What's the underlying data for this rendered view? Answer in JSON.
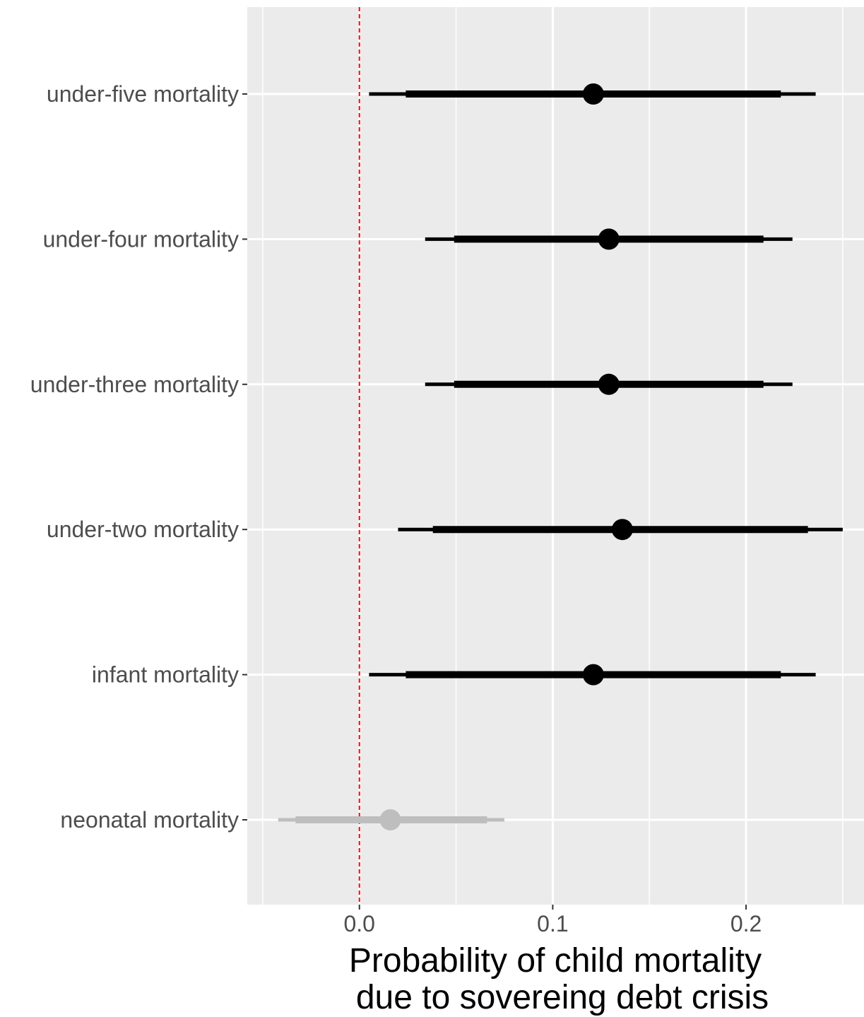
{
  "chart_data": {
    "type": "interval",
    "categories": [
      "under-five mortality",
      "under-four mortality",
      "under-three mortality",
      "under-two mortality",
      "infant mortality",
      "neonatal mortality"
    ],
    "series": [
      {
        "category": "under-five mortality",
        "point": 0.121,
        "inner": [
          0.024,
          0.218
        ],
        "outer": [
          0.005,
          0.236
        ],
        "color": "#000000"
      },
      {
        "category": "under-four mortality",
        "point": 0.129,
        "inner": [
          0.049,
          0.209
        ],
        "outer": [
          0.034,
          0.224
        ],
        "color": "#000000"
      },
      {
        "category": "under-three mortality",
        "point": 0.129,
        "inner": [
          0.049,
          0.209
        ],
        "outer": [
          0.034,
          0.224
        ],
        "color": "#000000"
      },
      {
        "category": "under-two mortality",
        "point": 0.136,
        "inner": [
          0.038,
          0.232
        ],
        "outer": [
          0.02,
          0.25
        ],
        "color": "#000000"
      },
      {
        "category": "infant mortality",
        "point": 0.121,
        "inner": [
          0.024,
          0.218
        ],
        "outer": [
          0.005,
          0.236
        ],
        "color": "#000000"
      },
      {
        "category": "neonatal mortality",
        "point": 0.016,
        "inner": [
          -0.033,
          0.066
        ],
        "outer": [
          -0.042,
          0.075
        ],
        "color": "#bebebe"
      }
    ],
    "x_ticks": [
      0.0,
      0.1,
      0.2
    ],
    "x_tick_labels": [
      "0.0",
      "0.1",
      "0.2"
    ],
    "xlim": [
      -0.058,
      0.261
    ],
    "reference_line": {
      "x": 0.0,
      "color": "#ff0000",
      "style": "dashed"
    },
    "xlabel": [
      "Probability of child mortality",
      "due to sovereing debt crisis"
    ],
    "ylabel": "",
    "grid": true,
    "panel_background": "#ebebeb",
    "grid_color": "#ffffff"
  }
}
